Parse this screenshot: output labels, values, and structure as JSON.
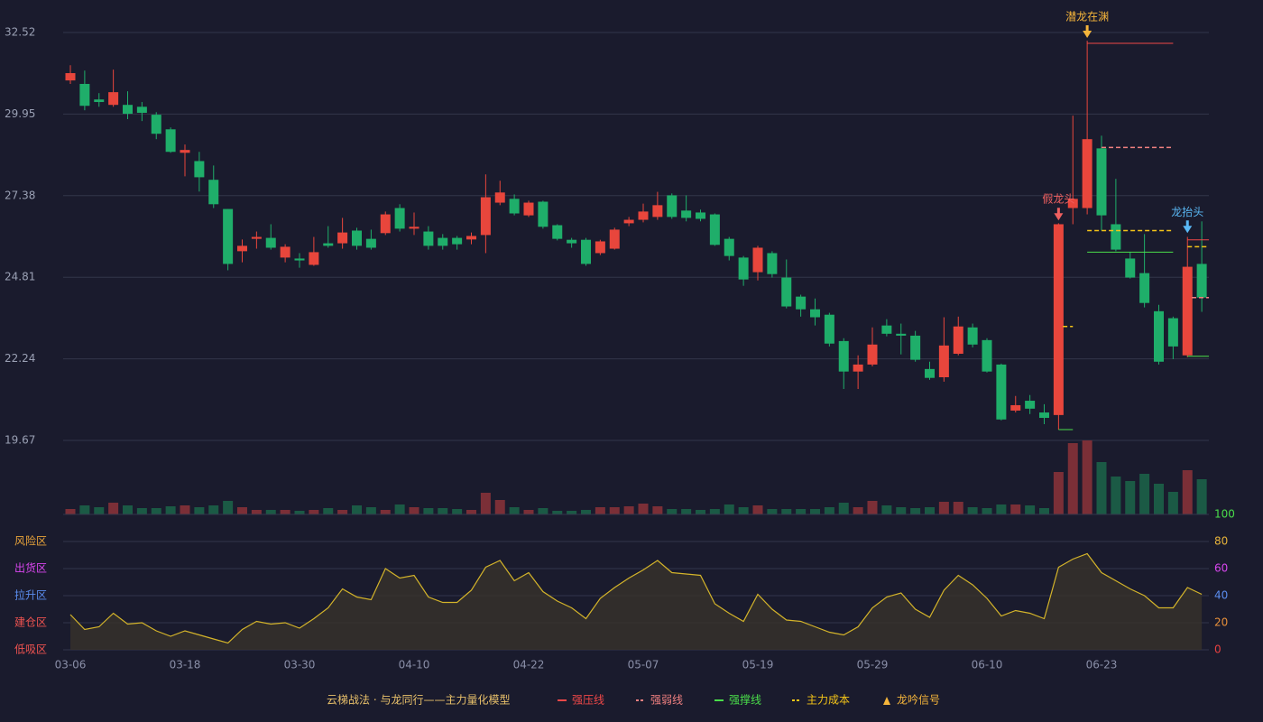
{
  "chart_data": [
    {
      "type": "candlestick",
      "categories": [
        "03-06",
        null,
        null,
        null,
        null,
        null,
        null,
        null,
        "03-18",
        null,
        null,
        null,
        null,
        null,
        null,
        null,
        "03-30",
        null,
        null,
        null,
        null,
        null,
        null,
        null,
        "04-10",
        null,
        null,
        null,
        null,
        null,
        null,
        null,
        "04-22",
        null,
        null,
        null,
        null,
        null,
        null,
        null,
        "05-07",
        null,
        null,
        null,
        null,
        null,
        null,
        null,
        "05-19",
        null,
        null,
        null,
        null,
        null,
        null,
        null,
        "05-29",
        null,
        null,
        null,
        null,
        null,
        null,
        null,
        "06-10",
        null,
        null,
        null,
        null,
        null,
        null,
        null,
        "06-23",
        null,
        null,
        null,
        null,
        null,
        null,
        null
      ],
      "open": [
        31.01,
        30.9,
        30.41,
        30.24,
        30.24,
        30.18,
        29.93,
        29.47,
        28.73,
        28.47,
        27.88,
        26.96,
        25.63,
        26.02,
        26.05,
        25.43,
        25.4,
        25.2,
        25.88,
        25.88,
        26.28,
        26.02,
        26.2,
        26.99,
        26.34,
        26.25,
        26.05,
        26.05,
        26.0,
        26.14,
        27.16,
        27.28,
        26.76,
        27.19,
        26.45,
        25.99,
        25.99,
        25.57,
        25.71,
        26.51,
        26.62,
        26.71,
        27.39,
        26.91,
        26.85,
        26.79,
        26.02,
        25.43,
        24.97,
        25.57,
        24.8,
        24.2,
        23.8,
        23.63,
        22.8,
        21.84,
        22.06,
        23.29,
        23.03,
        22.97,
        21.92,
        21.66,
        22.4,
        23.23,
        22.83,
        22.06,
        20.61,
        20.92,
        20.55,
        20.47,
        26.99,
        26.99,
        28.87,
        26.48,
        25.4,
        24.94,
        23.74,
        23.52,
        22.35,
        25.23
      ],
      "close": [
        31.24,
        30.21,
        30.33,
        30.64,
        29.96,
        29.99,
        29.33,
        28.76,
        28.82,
        27.96,
        27.11,
        25.23,
        25.8,
        26.08,
        25.74,
        25.77,
        25.34,
        25.6,
        25.8,
        26.22,
        25.8,
        25.74,
        26.79,
        26.34,
        26.4,
        25.8,
        25.8,
        25.85,
        26.11,
        27.33,
        27.48,
        26.82,
        27.16,
        26.4,
        26.02,
        25.88,
        25.23,
        25.94,
        26.31,
        26.62,
        26.88,
        27.08,
        26.71,
        26.68,
        26.65,
        25.83,
        25.48,
        24.74,
        25.74,
        24.91,
        23.89,
        23.8,
        23.55,
        22.72,
        21.84,
        22.06,
        22.69,
        23.03,
        22.97,
        22.21,
        21.64,
        22.66,
        23.26,
        22.69,
        21.84,
        20.33,
        20.78,
        20.67,
        20.38,
        26.48,
        27.28,
        29.16,
        26.76,
        25.68,
        24.8,
        24.0,
        22.15,
        22.63,
        25.14,
        24.17
      ],
      "high": [
        31.49,
        31.32,
        30.61,
        31.35,
        30.67,
        30.33,
        30.01,
        29.53,
        28.99,
        28.76,
        28.33,
        26.96,
        26.0,
        26.25,
        26.48,
        25.85,
        25.57,
        26.08,
        26.42,
        26.68,
        26.37,
        26.31,
        26.88,
        27.11,
        26.85,
        26.42,
        26.17,
        26.11,
        26.22,
        28.05,
        27.85,
        27.42,
        27.22,
        27.22,
        26.48,
        26.05,
        26.05,
        25.99,
        26.37,
        26.71,
        27.13,
        27.5,
        27.45,
        27.39,
        26.94,
        26.82,
        26.08,
        25.48,
        25.8,
        25.63,
        25.37,
        24.26,
        24.14,
        23.69,
        22.89,
        22.35,
        23.23,
        23.49,
        23.35,
        23.12,
        22.15,
        23.55,
        23.57,
        23.35,
        22.89,
        22.09,
        21.07,
        21.1,
        20.81,
        26.51,
        29.9,
        32.26,
        29.27,
        27.91,
        25.6,
        26.17,
        23.94,
        23.57,
        26.08,
        26.57
      ],
      "low": [
        30.9,
        30.07,
        30.18,
        30.18,
        29.79,
        29.73,
        29.16,
        28.73,
        27.99,
        27.51,
        26.99,
        25.03,
        25.28,
        25.71,
        25.68,
        25.28,
        25.11,
        25.17,
        25.74,
        25.71,
        25.68,
        25.68,
        26.14,
        26.25,
        26.14,
        25.68,
        25.68,
        25.68,
        25.85,
        25.57,
        27.08,
        26.76,
        26.71,
        26.34,
        25.97,
        25.74,
        25.17,
        25.51,
        25.68,
        26.42,
        26.54,
        26.62,
        26.65,
        26.57,
        26.57,
        25.8,
        25.34,
        24.54,
        24.71,
        24.8,
        23.83,
        23.57,
        23.29,
        22.63,
        21.29,
        21.29,
        22.0,
        22.95,
        22.38,
        22.15,
        21.58,
        21.52,
        22.35,
        22.6,
        21.81,
        20.3,
        20.55,
        20.5,
        20.18,
        20.01,
        26.48,
        26.79,
        26.28,
        25.63,
        24.77,
        23.86,
        22.06,
        22.23,
        22.29,
        23.72
      ],
      "up_color": "#e8463c",
      "down_color": "#1fae6a",
      "ylim": [
        19.67,
        32.52
      ],
      "yticks": [
        19.67,
        22.24,
        24.81,
        27.38,
        29.95,
        32.52
      ],
      "grid": true,
      "legend_title": "云梯战法 · 与龙同行——主力量化模型",
      "overlays": [
        {
          "name": "强压线",
          "color": "#f04848",
          "dashed": false,
          "segments": [
            {
              "from": 71,
              "to": 77,
              "value": 32.18
            },
            {
              "from": 78,
              "to": 79.5,
              "value": 25.99
            }
          ]
        },
        {
          "name": "强弱线",
          "color": "#f08080",
          "dashed": true,
          "segments": [
            {
              "from": 72,
              "to": 77,
              "value": 28.9
            },
            {
              "from": 78.3,
              "to": 79.5,
              "value": 24.17
            }
          ]
        },
        {
          "name": "强撑线",
          "color": "#4ade4a",
          "dashed": false,
          "segments": [
            {
              "from": 69,
              "to": 70,
              "value": 20.01
            },
            {
              "from": 71,
              "to": 77,
              "value": 25.6
            },
            {
              "from": 78,
              "to": 79.5,
              "value": 22.32
            }
          ]
        },
        {
          "name": "主力成本",
          "color": "#f5c518",
          "dashed": true,
          "segments": [
            {
              "from": 69.3,
              "to": 70,
              "value": 23.26
            },
            {
              "from": 71,
              "to": 77,
              "value": 26.28
            },
            {
              "from": 78,
              "to": 79.5,
              "value": 25.77
            }
          ]
        }
      ],
      "signal_name": "龙吟信号",
      "signal_color": "#f5b53b",
      "signals": [
        {
          "label": "潜龙在渊",
          "index": 71,
          "price": 32.35,
          "color": "#f5b53b"
        },
        {
          "label": "假龙头",
          "index": 69,
          "price": 26.6,
          "color": "#f06060"
        },
        {
          "label": "龙抬头",
          "index": 78,
          "price": 26.2,
          "color": "#5ab8f5"
        }
      ]
    },
    {
      "type": "bar",
      "values": [
        6,
        10,
        8,
        13,
        10,
        7,
        7,
        9,
        10,
        8,
        10,
        15,
        8,
        5,
        5,
        5,
        4,
        5,
        7,
        5,
        10,
        8,
        5,
        11,
        8,
        7,
        7,
        6,
        5,
        24,
        16,
        8,
        5,
        7,
        4,
        4,
        5,
        8,
        8,
        9,
        12,
        9,
        6,
        6,
        5,
        6,
        11,
        8,
        10,
        6,
        6,
        6,
        6,
        8,
        13,
        8,
        15,
        10,
        8,
        7,
        8,
        14,
        14,
        8,
        7,
        11,
        11,
        10,
        7,
        47,
        79,
        82,
        58,
        42,
        37,
        45,
        34,
        25,
        49,
        39
      ],
      "up_color": "#7b2f37",
      "down_color": "#1b5a45"
    },
    {
      "type": "area",
      "values": [
        26,
        15,
        17,
        27,
        19,
        20,
        14,
        10,
        14,
        11,
        8,
        5,
        15,
        21,
        19,
        20,
        16,
        23,
        31,
        45,
        39,
        37,
        60,
        53,
        55,
        39,
        35,
        35,
        44,
        61,
        66,
        51,
        57,
        43,
        36,
        31,
        23,
        38,
        46,
        53,
        59,
        66,
        57,
        56,
        55,
        34,
        27,
        21,
        41,
        30,
        22,
        21,
        17,
        13,
        11,
        17,
        31,
        39,
        42,
        30,
        24,
        44,
        55,
        48,
        38,
        25,
        29,
        27,
        23,
        61,
        67,
        71,
        57,
        51,
        45,
        40,
        31,
        31,
        46,
        41
      ],
      "color": "#d4b42a",
      "fill": "#37322a",
      "ylim": [
        0,
        100
      ],
      "yticks": [
        0,
        20,
        40,
        60,
        80,
        100
      ],
      "ytick_colors": [
        "#e84040",
        "#e8903a",
        "#5b8def",
        "#d946ef",
        "#e8b43a",
        "#4ade4a"
      ],
      "zones": [
        {
          "label": "风险区",
          "value": 80,
          "color": "#e8a33a"
        },
        {
          "label": "出货区",
          "value": 60,
          "color": "#d946ef"
        },
        {
          "label": "拉升区",
          "value": 40,
          "color": "#5b8def"
        },
        {
          "label": "建仓区",
          "value": 20,
          "color": "#ef5350"
        },
        {
          "label": "低吸区",
          "value": 0,
          "color": "#ef5350"
        }
      ]
    }
  ]
}
